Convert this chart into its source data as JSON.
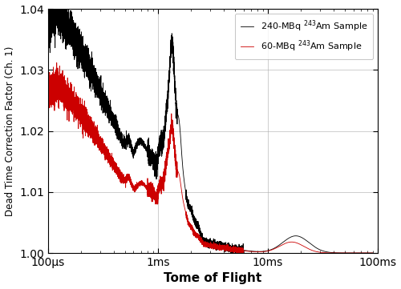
{
  "xlabel": "Tome of Flight",
  "ylabel": "Dead Time Correction Factor (Ch. 1)",
  "ylim": [
    1.0,
    1.04
  ],
  "yticks": [
    1.0,
    1.01,
    1.02,
    1.03,
    1.04
  ],
  "xtick_positions": [
    0.0001,
    0.001,
    0.01,
    0.1
  ],
  "xtick_labels": [
    "100μs",
    "1ms",
    "10ms",
    "100ms"
  ],
  "color_black": "#000000",
  "color_red": "#cc0000",
  "legend_label_black": "240-MBq $^{243}$Am Sample",
  "legend_label_red": "60-MBq $^{243}$Am Sample",
  "grid_color": "#aaaaaa",
  "background_color": "#ffffff",
  "linewidth": 0.6
}
